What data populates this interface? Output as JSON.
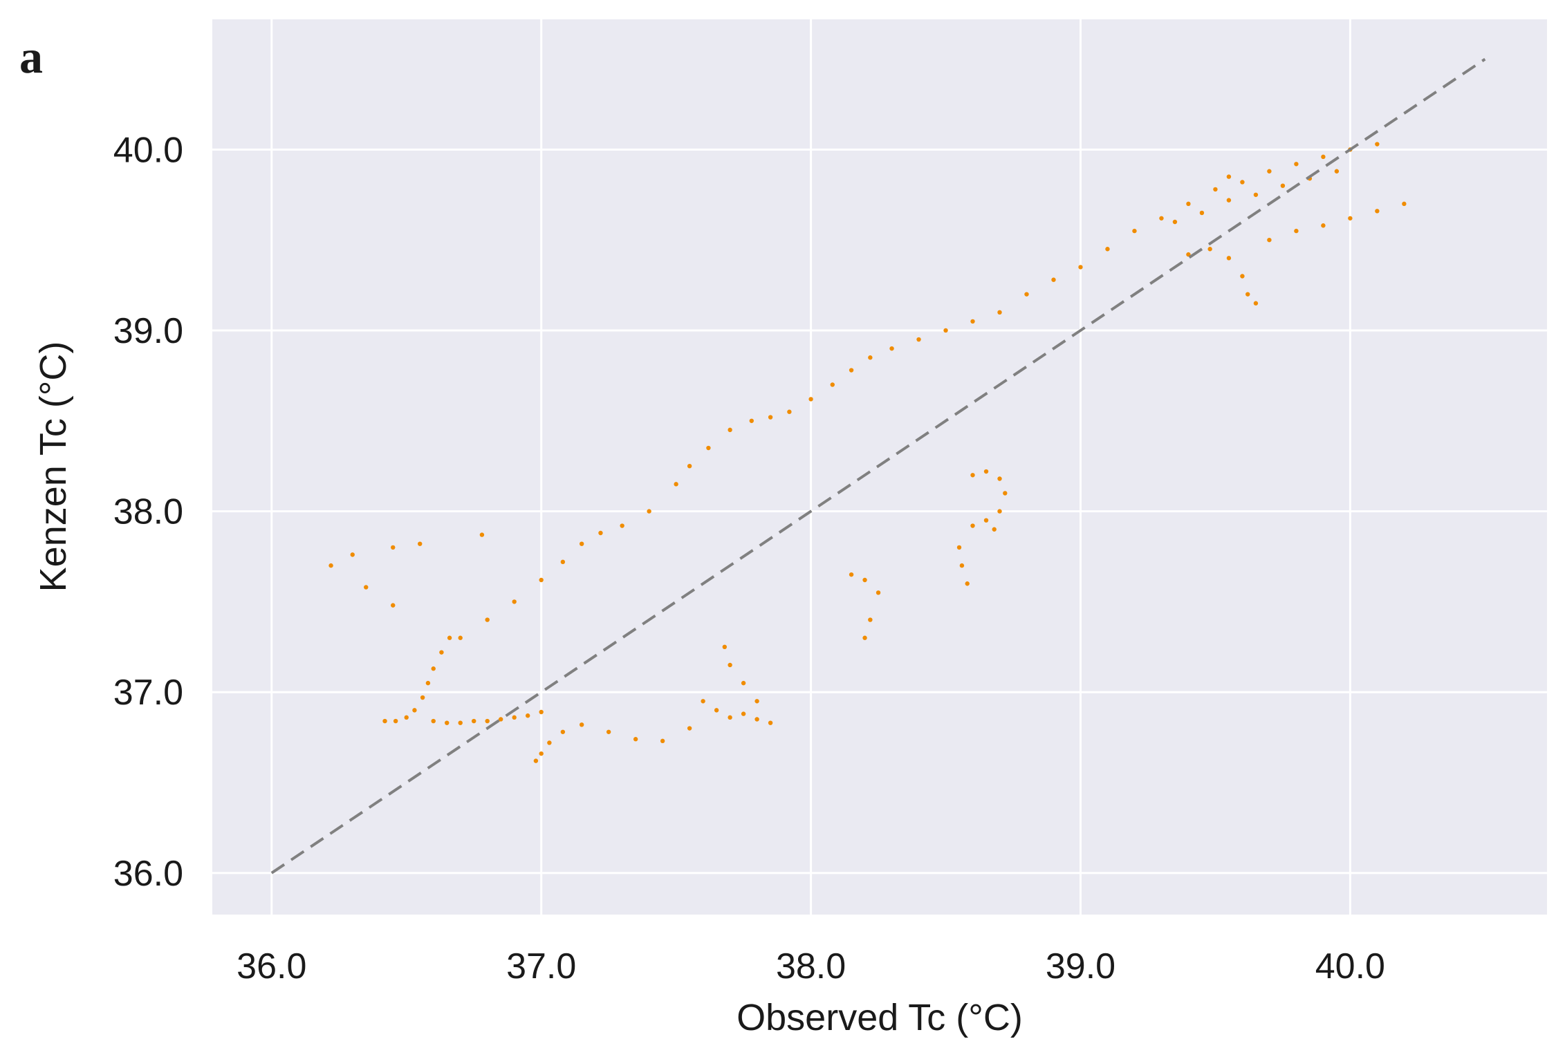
{
  "panel_label": "a",
  "colors": {
    "plot_background": "#eaeaf2",
    "grid": "#ffffff",
    "points": "#f08c00",
    "reference_line": "#808080",
    "text": "#1a1a1a"
  },
  "chart_data": {
    "type": "scatter",
    "title": "",
    "xlabel": "Observed Tc (°C)",
    "ylabel": "Kenzen Tc (°C)",
    "xlim": [
      35.78,
      40.73
    ],
    "ylim": [
      35.77,
      40.72
    ],
    "xticks": [
      36.0,
      37.0,
      38.0,
      39.0,
      40.0
    ],
    "yticks": [
      36.0,
      37.0,
      38.0,
      39.0,
      40.0
    ],
    "xtick_labels": [
      "36.0",
      "37.0",
      "38.0",
      "39.0",
      "40.0"
    ],
    "ytick_labels": [
      "36.0",
      "37.0",
      "38.0",
      "39.0",
      "40.0"
    ],
    "grid": true,
    "legend": "none",
    "reference_line": {
      "style": "dashed",
      "x": [
        36.0,
        40.5
      ],
      "y": [
        36.0,
        40.5
      ]
    },
    "series": [
      {
        "marker": "point",
        "points": [
          [
            36.22,
            37.7
          ],
          [
            36.3,
            37.76
          ],
          [
            36.45,
            37.8
          ],
          [
            36.55,
            37.82
          ],
          [
            36.78,
            37.87
          ],
          [
            36.35,
            37.58
          ],
          [
            36.45,
            37.48
          ],
          [
            36.42,
            36.84
          ],
          [
            36.46,
            36.84
          ],
          [
            36.5,
            36.86
          ],
          [
            36.53,
            36.9
          ],
          [
            36.56,
            36.97
          ],
          [
            36.58,
            37.05
          ],
          [
            36.6,
            37.13
          ],
          [
            36.63,
            37.22
          ],
          [
            36.66,
            37.3
          ],
          [
            36.6,
            36.84
          ],
          [
            36.65,
            36.83
          ],
          [
            36.7,
            36.83
          ],
          [
            36.75,
            36.84
          ],
          [
            36.8,
            36.84
          ],
          [
            36.85,
            36.85
          ],
          [
            36.9,
            36.86
          ],
          [
            36.95,
            36.87
          ],
          [
            37.0,
            36.89
          ],
          [
            36.98,
            36.62
          ],
          [
            37.0,
            36.66
          ],
          [
            37.03,
            36.72
          ],
          [
            37.08,
            36.78
          ],
          [
            37.15,
            36.82
          ],
          [
            37.25,
            36.78
          ],
          [
            37.35,
            36.74
          ],
          [
            37.45,
            36.73
          ],
          [
            37.55,
            36.8
          ],
          [
            37.6,
            36.95
          ],
          [
            37.65,
            36.9
          ],
          [
            37.7,
            36.86
          ],
          [
            37.75,
            36.88
          ],
          [
            37.8,
            36.85
          ],
          [
            37.85,
            36.83
          ],
          [
            36.7,
            37.3
          ],
          [
            36.8,
            37.4
          ],
          [
            36.9,
            37.5
          ],
          [
            37.0,
            37.62
          ],
          [
            37.08,
            37.72
          ],
          [
            37.15,
            37.82
          ],
          [
            37.22,
            37.88
          ],
          [
            37.3,
            37.92
          ],
          [
            37.4,
            38.0
          ],
          [
            37.5,
            38.15
          ],
          [
            37.55,
            38.25
          ],
          [
            37.62,
            38.35
          ],
          [
            37.7,
            38.45
          ],
          [
            37.78,
            38.5
          ],
          [
            37.85,
            38.52
          ],
          [
            37.92,
            38.55
          ],
          [
            38.0,
            38.62
          ],
          [
            38.08,
            38.7
          ],
          [
            38.15,
            38.78
          ],
          [
            38.22,
            38.85
          ],
          [
            38.3,
            38.9
          ],
          [
            38.4,
            38.95
          ],
          [
            38.5,
            39.0
          ],
          [
            38.6,
            39.05
          ],
          [
            38.7,
            39.1
          ],
          [
            38.8,
            39.2
          ],
          [
            38.9,
            39.28
          ],
          [
            39.0,
            39.35
          ],
          [
            39.1,
            39.45
          ],
          [
            39.2,
            39.55
          ],
          [
            39.3,
            39.62
          ],
          [
            39.4,
            39.7
          ],
          [
            39.5,
            39.78
          ],
          [
            39.55,
            39.85
          ],
          [
            39.6,
            39.82
          ],
          [
            39.7,
            39.88
          ],
          [
            39.8,
            39.92
          ],
          [
            39.9,
            39.96
          ],
          [
            40.0,
            40.0
          ],
          [
            40.1,
            40.03
          ],
          [
            39.35,
            39.6
          ],
          [
            39.45,
            39.65
          ],
          [
            39.55,
            39.72
          ],
          [
            39.65,
            39.75
          ],
          [
            39.75,
            39.8
          ],
          [
            39.85,
            39.84
          ],
          [
            39.95,
            39.88
          ],
          [
            39.7,
            39.5
          ],
          [
            39.8,
            39.55
          ],
          [
            39.9,
            39.58
          ],
          [
            40.0,
            39.62
          ],
          [
            40.1,
            39.66
          ],
          [
            40.2,
            39.7
          ],
          [
            39.4,
            39.42
          ],
          [
            39.48,
            39.45
          ],
          [
            39.55,
            39.4
          ],
          [
            39.6,
            39.3
          ],
          [
            39.62,
            39.2
          ],
          [
            39.65,
            39.15
          ],
          [
            38.6,
            38.2
          ],
          [
            38.65,
            38.22
          ],
          [
            38.7,
            38.18
          ],
          [
            38.72,
            38.1
          ],
          [
            38.7,
            38.0
          ],
          [
            38.68,
            37.9
          ],
          [
            38.65,
            37.95
          ],
          [
            38.6,
            37.92
          ],
          [
            38.55,
            37.8
          ],
          [
            38.56,
            37.7
          ],
          [
            38.58,
            37.6
          ],
          [
            38.2,
            37.3
          ],
          [
            38.22,
            37.4
          ],
          [
            38.25,
            37.55
          ],
          [
            38.2,
            37.62
          ],
          [
            38.15,
            37.65
          ],
          [
            37.8,
            36.95
          ],
          [
            37.75,
            37.05
          ],
          [
            37.7,
            37.15
          ],
          [
            37.68,
            37.25
          ]
        ]
      }
    ]
  }
}
